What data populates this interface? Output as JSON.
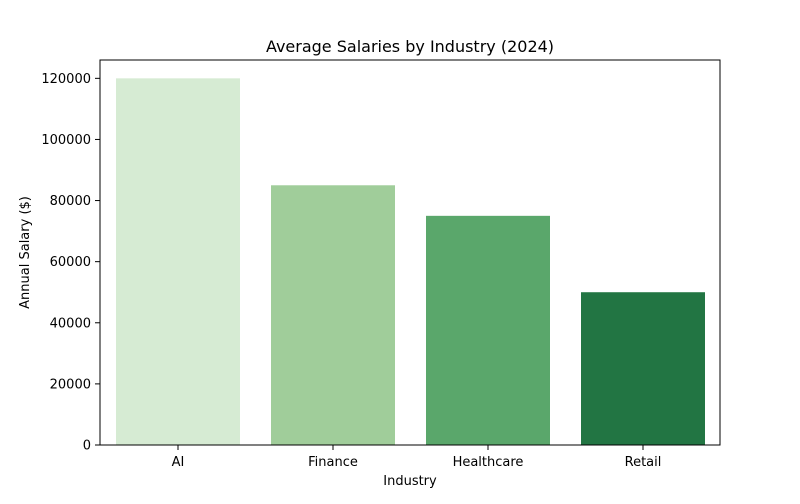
{
  "chart_data": {
    "type": "bar",
    "title": "Average Salaries by Industry (2024)",
    "xlabel": "Industry",
    "ylabel": "Annual Salary ($)",
    "categories": [
      "AI",
      "Finance",
      "Healthcare",
      "Retail"
    ],
    "values": [
      120000,
      85000,
      75000,
      50000
    ],
    "colors": [
      "#d6ebd3",
      "#a0cd9a",
      "#5aa76b",
      "#227543"
    ],
    "ylim": [
      0,
      126000
    ],
    "yticks": [
      0,
      20000,
      40000,
      60000,
      80000,
      100000,
      120000
    ],
    "grid": false,
    "legend": "none"
  }
}
